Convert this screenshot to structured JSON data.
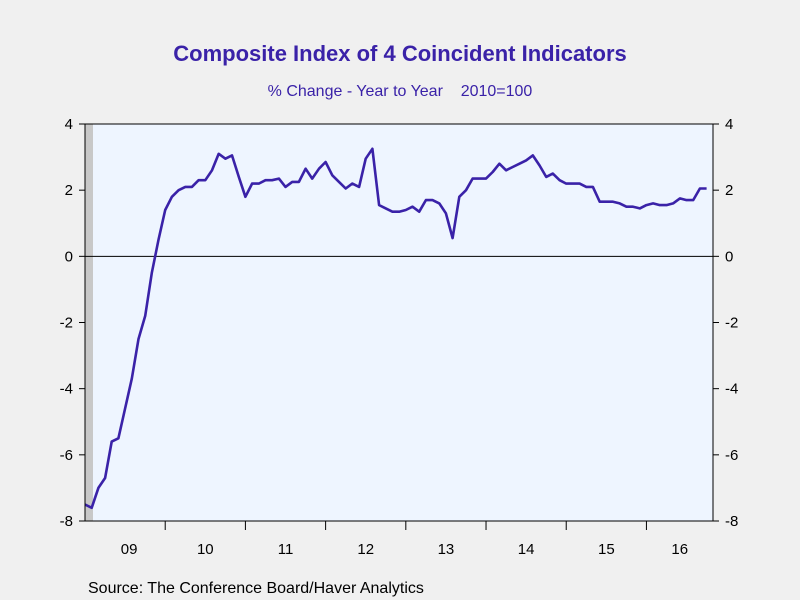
{
  "chart_data": {
    "type": "line",
    "title": "Composite Index of 4 Coincident Indicators",
    "subtitle": "% Change - Year to Year    2010=100",
    "source": "Source:  The Conference Board/Haver Analytics",
    "ylim": [
      -8,
      4
    ],
    "yticks": [
      4,
      2,
      0,
      -2,
      -4,
      -6,
      -8
    ],
    "xlim": [
      2009.0,
      2016.83
    ],
    "xtick_labels": [
      {
        "label": "09",
        "x": 2009.0
      },
      {
        "label": "10",
        "x": 2010.0
      },
      {
        "label": "11",
        "x": 2011.0
      },
      {
        "label": "12",
        "x": 2012.0
      },
      {
        "label": "13",
        "x": 2013.0
      },
      {
        "label": "14",
        "x": 2014.0
      },
      {
        "label": "15",
        "x": 2015.0
      },
      {
        "label": "16",
        "x": 2016.0
      }
    ],
    "recession_shading": {
      "x_start": 2009.0,
      "x_end": 2009.5
    },
    "zero_line": true,
    "colors": {
      "line": "#3a22a8",
      "plot_bg": "#eef5ff",
      "shading": "#c8c8c8",
      "title": "#3a22a8"
    },
    "series": [
      {
        "values": [
          [
            2009.0,
            -7.5
          ],
          [
            2009.083,
            -7.6
          ],
          [
            2009.167,
            -7.0
          ],
          [
            2009.25,
            -6.7
          ],
          [
            2009.333,
            -5.6
          ],
          [
            2009.417,
            -5.5
          ],
          [
            2009.5,
            -4.6
          ],
          [
            2009.583,
            -3.7
          ],
          [
            2009.667,
            -2.5
          ],
          [
            2009.75,
            -1.8
          ],
          [
            2009.833,
            -0.5
          ],
          [
            2009.917,
            0.5
          ],
          [
            2010.0,
            1.4
          ],
          [
            2010.083,
            1.8
          ],
          [
            2010.167,
            2.0
          ],
          [
            2010.25,
            2.1
          ],
          [
            2010.333,
            2.1
          ],
          [
            2010.417,
            2.3
          ],
          [
            2010.5,
            2.3
          ],
          [
            2010.583,
            2.6
          ],
          [
            2010.667,
            3.1
          ],
          [
            2010.75,
            2.95
          ],
          [
            2010.833,
            3.05
          ],
          [
            2010.917,
            2.4
          ],
          [
            2011.0,
            1.8
          ],
          [
            2011.083,
            2.2
          ],
          [
            2011.167,
            2.2
          ],
          [
            2011.25,
            2.3
          ],
          [
            2011.333,
            2.3
          ],
          [
            2011.417,
            2.35
          ],
          [
            2011.5,
            2.1
          ],
          [
            2011.583,
            2.25
          ],
          [
            2011.667,
            2.25
          ],
          [
            2011.75,
            2.65
          ],
          [
            2011.833,
            2.35
          ],
          [
            2011.917,
            2.65
          ],
          [
            2012.0,
            2.85
          ],
          [
            2012.083,
            2.45
          ],
          [
            2012.167,
            2.25
          ],
          [
            2012.25,
            2.05
          ],
          [
            2012.333,
            2.2
          ],
          [
            2012.417,
            2.1
          ],
          [
            2012.5,
            2.95
          ],
          [
            2012.583,
            3.25
          ],
          [
            2012.667,
            1.55
          ],
          [
            2012.75,
            1.45
          ],
          [
            2012.833,
            1.35
          ],
          [
            2012.917,
            1.35
          ],
          [
            2013.0,
            1.4
          ],
          [
            2013.083,
            1.5
          ],
          [
            2013.167,
            1.35
          ],
          [
            2013.25,
            1.7
          ],
          [
            2013.333,
            1.7
          ],
          [
            2013.417,
            1.6
          ],
          [
            2013.5,
            1.3
          ],
          [
            2013.583,
            0.55
          ],
          [
            2013.667,
            1.8
          ],
          [
            2013.75,
            2.0
          ],
          [
            2013.833,
            2.35
          ],
          [
            2013.917,
            2.35
          ],
          [
            2014.0,
            2.35
          ],
          [
            2014.083,
            2.55
          ],
          [
            2014.167,
            2.8
          ],
          [
            2014.25,
            2.6
          ],
          [
            2014.333,
            2.7
          ],
          [
            2014.417,
            2.8
          ],
          [
            2014.5,
            2.9
          ],
          [
            2014.583,
            3.05
          ],
          [
            2014.667,
            2.75
          ],
          [
            2014.75,
            2.4
          ],
          [
            2014.833,
            2.5
          ],
          [
            2014.917,
            2.3
          ],
          [
            2015.0,
            2.2
          ],
          [
            2015.083,
            2.2
          ],
          [
            2015.167,
            2.2
          ],
          [
            2015.25,
            2.1
          ],
          [
            2015.333,
            2.1
          ],
          [
            2015.417,
            1.65
          ],
          [
            2015.5,
            1.65
          ],
          [
            2015.583,
            1.65
          ],
          [
            2015.667,
            1.6
          ],
          [
            2015.75,
            1.5
          ],
          [
            2015.833,
            1.5
          ],
          [
            2015.917,
            1.45
          ],
          [
            2016.0,
            1.55
          ],
          [
            2016.083,
            1.6
          ],
          [
            2016.167,
            1.55
          ],
          [
            2016.25,
            1.55
          ],
          [
            2016.333,
            1.6
          ],
          [
            2016.417,
            1.75
          ],
          [
            2016.5,
            1.7
          ],
          [
            2016.583,
            1.7
          ],
          [
            2016.667,
            2.05
          ],
          [
            2016.75,
            2.05
          ]
        ]
      }
    ]
  }
}
